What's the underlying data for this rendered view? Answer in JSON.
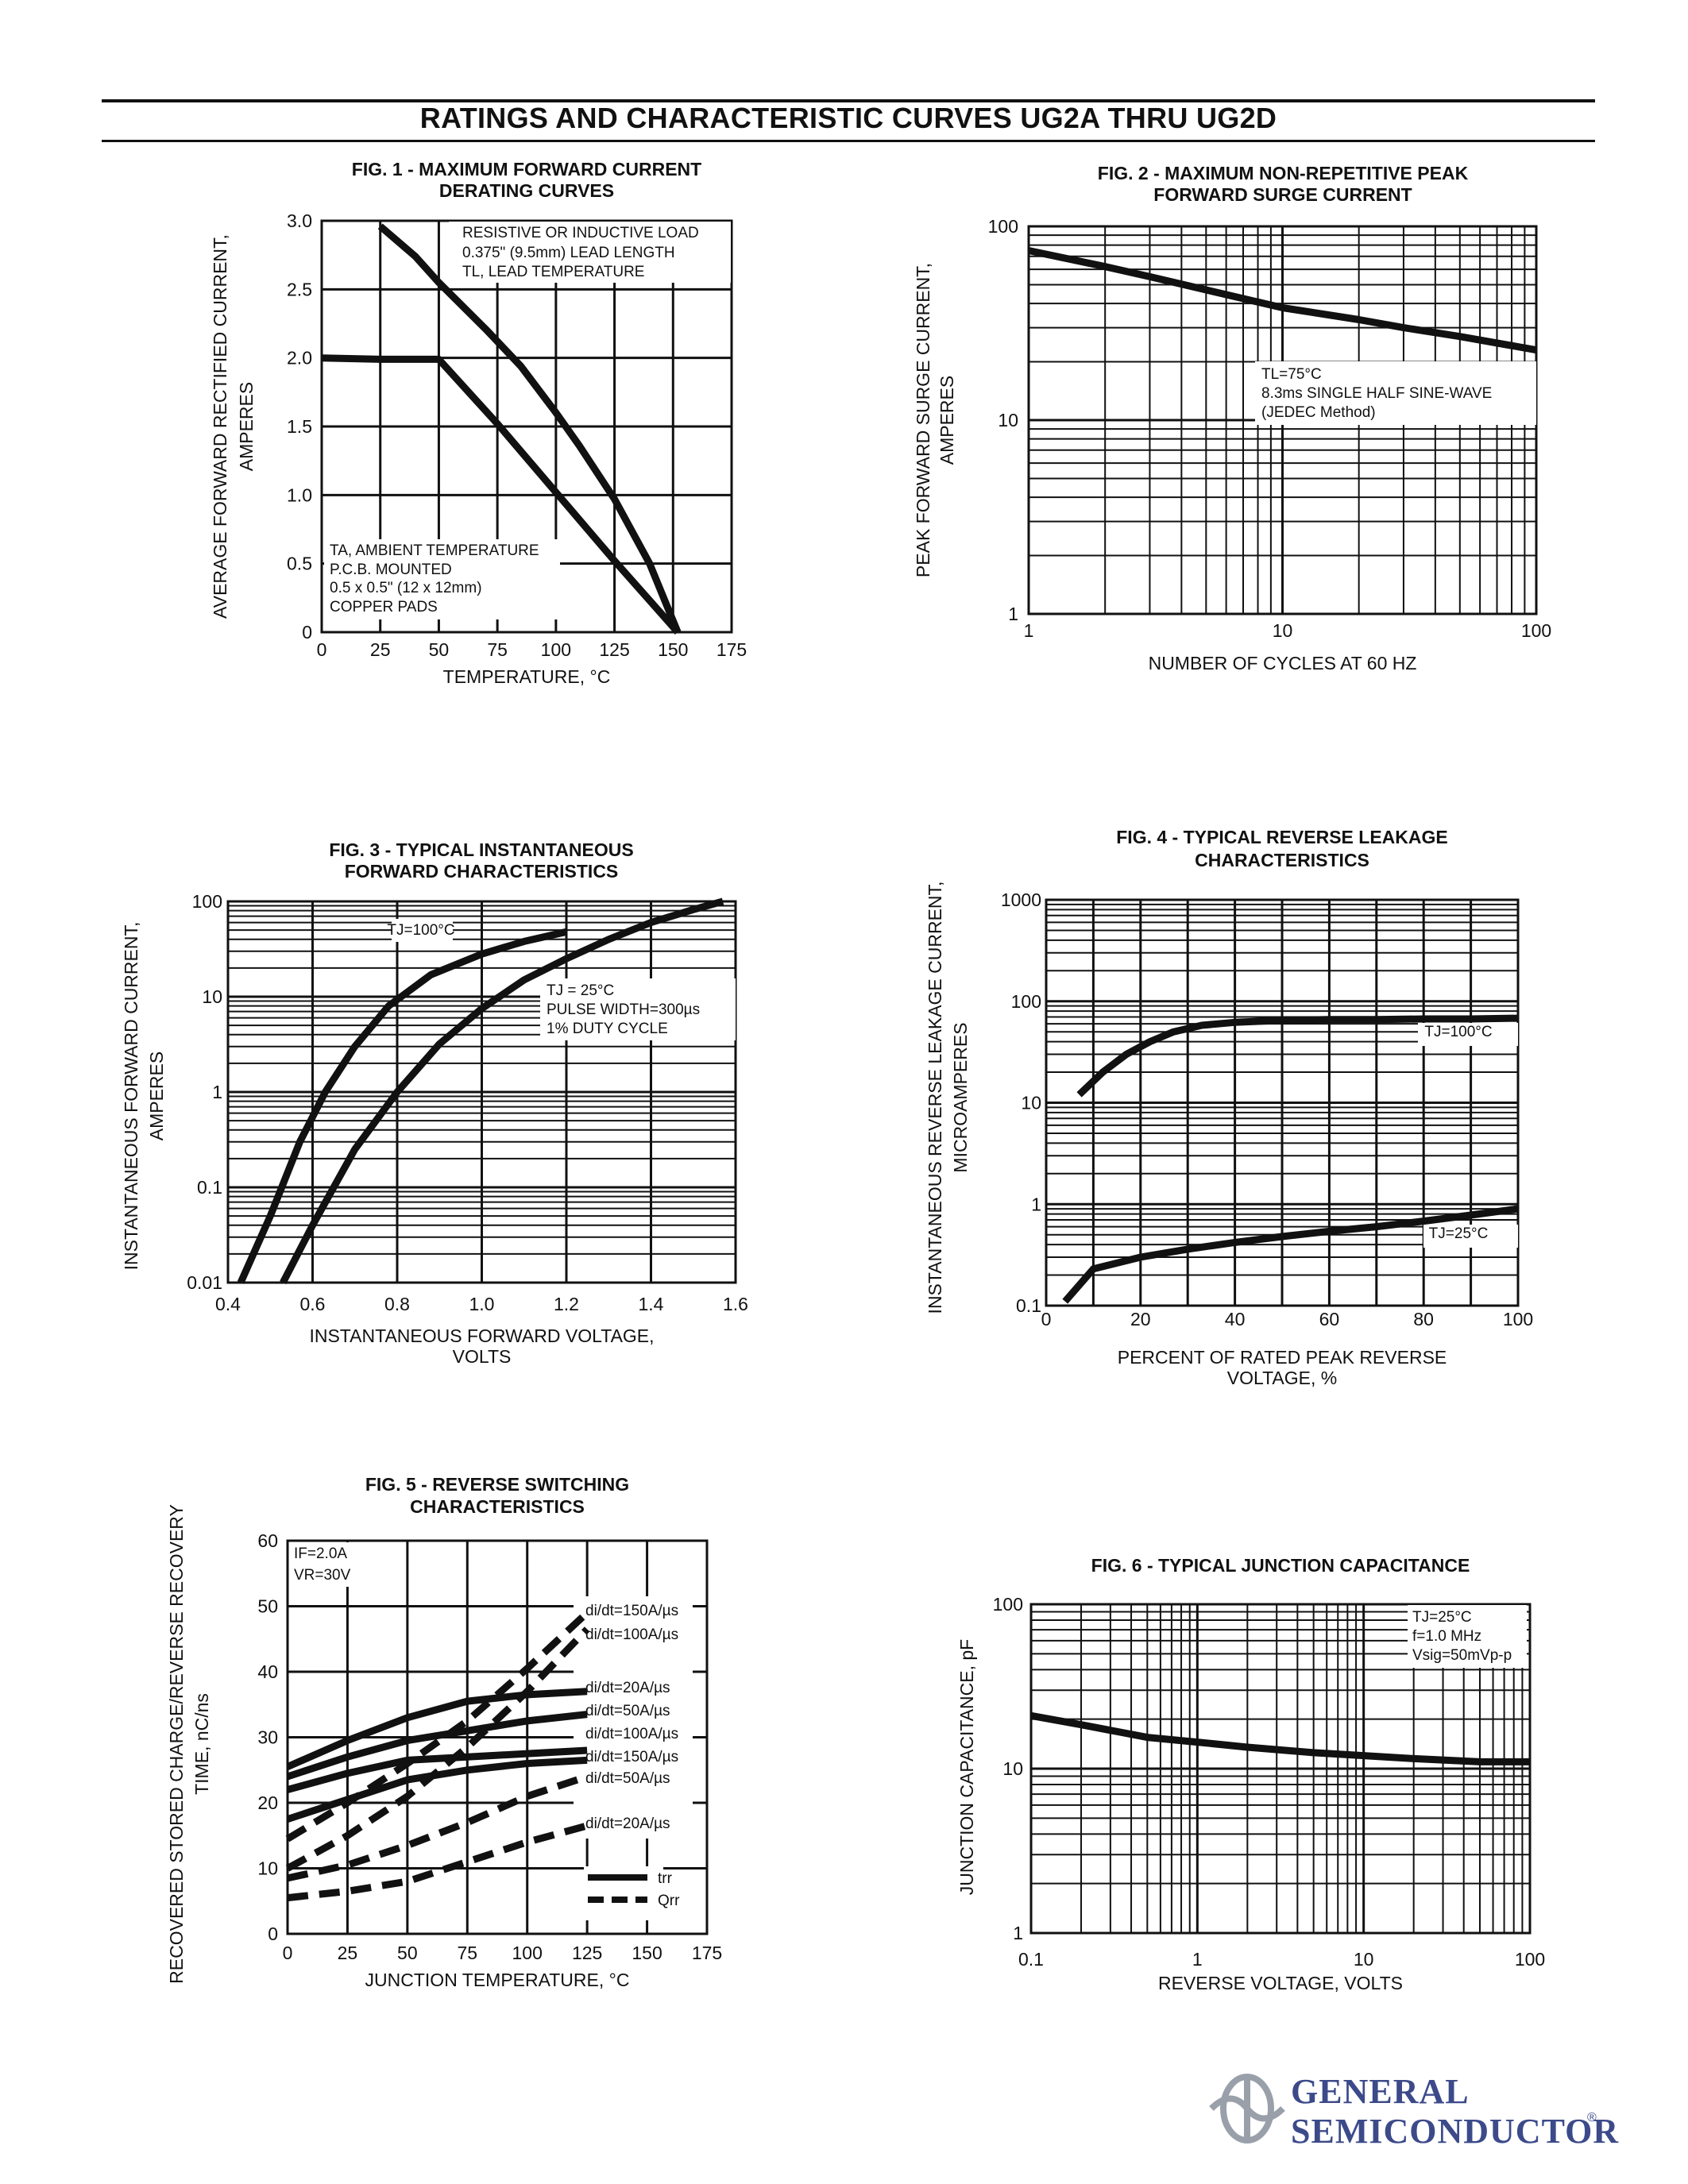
{
  "page": {
    "title": "RATINGS AND CHARACTERISTIC CURVES UG2A THRU UG2D"
  },
  "logo": {
    "line1": "GENERAL",
    "line2": "SEMICONDUCTOR",
    "reg": "®"
  },
  "chart_data": [
    {
      "id": "fig1",
      "type": "line",
      "title_lines": [
        "FIG. 1 - MAXIMUM FORWARD CURRENT",
        "DERATING CURVES"
      ],
      "xlabel_lines": [
        "TEMPERATURE, °C"
      ],
      "ylabel_lines": [
        "AVERAGE FORWARD RECTIFIED CURRENT,",
        "AMPERES"
      ],
      "x_scale": "linear",
      "y_scale": "linear",
      "xlim": [
        0,
        175
      ],
      "ylim": [
        0,
        3.0
      ],
      "xticks": [
        0,
        25,
        50,
        75,
        100,
        125,
        150,
        175
      ],
      "xtick_labels": [
        "0",
        "25",
        "50",
        "75",
        "100",
        "125",
        "150",
        "175"
      ],
      "yticks": [
        0,
        0.5,
        1.0,
        1.5,
        2.0,
        2.5,
        3.0
      ],
      "ytick_labels": [
        "0",
        "0.5",
        "1.0",
        "1.5",
        "2.0",
        "2.5",
        "3.0"
      ],
      "grid_x": [
        25,
        50,
        75,
        100,
        125,
        150
      ],
      "grid_y": [
        0.5,
        1.0,
        1.5,
        2.0,
        2.5
      ],
      "series": [
        {
          "style": "solid",
          "x": [
            25,
            40,
            50,
            60,
            70,
            85,
            100,
            110,
            125,
            140,
            152
          ],
          "y": [
            2.96,
            2.74,
            2.55,
            2.38,
            2.21,
            1.94,
            1.6,
            1.36,
            0.97,
            0.5,
            0.0
          ]
        },
        {
          "style": "solid",
          "x": [
            0,
            25,
            50,
            75,
            100,
            125,
            152
          ],
          "y": [
            2.0,
            1.99,
            1.99,
            1.52,
            1.02,
            0.52,
            0.0
          ]
        }
      ],
      "annotations": [
        {
          "lines": [
            "RESISTIVE OR INDUCTIVE LOAD",
            "0.375\" (9.5mm) LEAD LENGTH",
            "TL, LEAD TEMPERATURE"
          ]
        },
        {
          "lines": [
            "TA, AMBIENT TEMPERATURE",
            "P.C.B. MOUNTED",
            "0.5 x 0.5\" (12 x 12mm)",
            "COPPER PADS"
          ]
        }
      ]
    },
    {
      "id": "fig2",
      "type": "line",
      "title_lines": [
        "FIG. 2 - MAXIMUM NON-REPETITIVE PEAK",
        "FORWARD SURGE CURRENT"
      ],
      "xlabel_lines": [
        "NUMBER OF CYCLES AT 60 HZ"
      ],
      "ylabel_lines": [
        "PEAK FORWARD SURGE CURRENT,",
        "AMPERES"
      ],
      "x_scale": "log",
      "y_scale": "log",
      "xlim": [
        1,
        100
      ],
      "ylim": [
        1,
        100
      ],
      "xticks": [
        1,
        10,
        100
      ],
      "xtick_labels": [
        "1",
        "10",
        "100"
      ],
      "yticks": [
        1,
        10,
        100
      ],
      "ytick_labels": [
        "1",
        "10",
        "100"
      ],
      "series": [
        {
          "style": "solid",
          "x": [
            1,
            2,
            3,
            5,
            10,
            20,
            30,
            50,
            100
          ],
          "y": [
            75,
            62,
            55,
            47,
            38,
            33,
            30,
            27,
            23
          ]
        }
      ],
      "annotations": [
        {
          "lines": [
            "TL=75°C",
            "8.3ms SINGLE HALF SINE-WAVE",
            "(JEDEC Method)"
          ]
        }
      ]
    },
    {
      "id": "fig3",
      "type": "line",
      "title_lines": [
        "FIG. 3 - TYPICAL INSTANTANEOUS",
        "FORWARD CHARACTERISTICS"
      ],
      "xlabel_lines": [
        "INSTANTANEOUS FORWARD VOLTAGE,",
        "VOLTS"
      ],
      "ylabel_lines": [
        "INSTANTANEOUS FORWARD CURRENT,",
        "AMPERES"
      ],
      "x_scale": "linear",
      "y_scale": "log",
      "xlim": [
        0.4,
        1.6
      ],
      "ylim": [
        0.01,
        100
      ],
      "xticks": [
        0.4,
        0.6,
        0.8,
        1.0,
        1.2,
        1.4,
        1.6
      ],
      "xtick_labels": [
        "0.4",
        "0.6",
        "0.8",
        "1.0",
        "1.2",
        "1.4",
        "1.6"
      ],
      "yticks": [
        0.01,
        0.1,
        1,
        10,
        100
      ],
      "ytick_labels": [
        "0.01",
        "0.1",
        "1",
        "10",
        "100"
      ],
      "grid_x": [
        0.6,
        0.8,
        1.0,
        1.2,
        1.4
      ],
      "series": [
        {
          "name": "TJ=100°C",
          "style": "solid",
          "x": [
            0.43,
            0.5,
            0.57,
            0.63,
            0.7,
            0.78,
            0.88,
            1.0,
            1.1,
            1.2
          ],
          "y": [
            0.01,
            0.05,
            0.3,
            1.0,
            3.0,
            8.0,
            17.0,
            28.0,
            38.0,
            48.0
          ]
        },
        {
          "name": "TJ = 25°C",
          "style": "solid",
          "x": [
            0.53,
            0.6,
            0.7,
            0.8,
            0.9,
            1.0,
            1.1,
            1.2,
            1.3,
            1.4,
            1.5,
            1.57
          ],
          "y": [
            0.01,
            0.04,
            0.25,
            1.0,
            3.2,
            7.5,
            15.0,
            25.0,
            40.0,
            60.0,
            82.0,
            100.0
          ]
        }
      ],
      "annotations": [
        {
          "lines": [
            "TJ=100°C"
          ]
        },
        {
          "lines": [
            "TJ = 25°C",
            "PULSE WIDTH=300µs",
            "1% DUTY CYCLE"
          ]
        }
      ]
    },
    {
      "id": "fig4",
      "type": "line",
      "title_lines": [
        "FIG. 4 - TYPICAL REVERSE LEAKAGE",
        "CHARACTERISTICS"
      ],
      "xlabel_lines": [
        "PERCENT OF RATED PEAK REVERSE",
        "VOLTAGE, %"
      ],
      "ylabel_lines": [
        "INSTANTANEOUS REVERSE LEAKAGE CURRENT,",
        "MICROAMPERES"
      ],
      "x_scale": "linear",
      "y_scale": "log",
      "xlim": [
        0,
        100
      ],
      "ylim": [
        0.1,
        1000
      ],
      "xticks": [
        0,
        20,
        40,
        60,
        80,
        100
      ],
      "xtick_labels": [
        "0",
        "20",
        "40",
        "60",
        "80",
        "100"
      ],
      "yticks": [
        0.1,
        1,
        10,
        100,
        1000
      ],
      "ytick_labels": [
        "0.1",
        "1",
        "10",
        "100",
        "1000"
      ],
      "grid_x": [
        10,
        20,
        30,
        40,
        50,
        60,
        70,
        80,
        90
      ],
      "series": [
        {
          "name": "TJ=100°C",
          "style": "solid",
          "x": [
            7,
            12,
            17,
            22,
            27,
            33,
            40,
            50,
            60,
            70,
            80,
            90,
            100
          ],
          "y": [
            12.0,
            20.0,
            30.0,
            40.0,
            50.0,
            58.0,
            62.0,
            65.0,
            66.0,
            66.0,
            67.0,
            67.0,
            68.0
          ]
        },
        {
          "name": "TJ=25°C",
          "style": "solid",
          "x": [
            4,
            10,
            20,
            30,
            40,
            50,
            60,
            70,
            80,
            90,
            100
          ],
          "y": [
            0.11,
            0.23,
            0.3,
            0.36,
            0.42,
            0.48,
            0.54,
            0.6,
            0.68,
            0.78,
            0.9
          ]
        }
      ],
      "annotations": [
        {
          "lines": [
            "TJ=100°C"
          ]
        },
        {
          "lines": [
            "TJ=25°C"
          ]
        }
      ]
    },
    {
      "id": "fig5",
      "type": "line",
      "title_lines": [
        "FIG. 5 - REVERSE SWITCHING",
        "CHARACTERISTICS"
      ],
      "xlabel_lines": [
        "JUNCTION TEMPERATURE, °C"
      ],
      "ylabel_lines": [
        "RECOVERED STORED CHARGE/REVERSE RECOVERY",
        "TIME, nC/ns"
      ],
      "x_scale": "linear",
      "y_scale": "linear",
      "xlim": [
        0,
        175
      ],
      "ylim": [
        0,
        60
      ],
      "xticks": [
        0,
        25,
        50,
        75,
        100,
        125,
        150,
        175
      ],
      "xtick_labels": [
        "0",
        "25",
        "50",
        "75",
        "100",
        "125",
        "150",
        "175"
      ],
      "yticks": [
        0,
        10,
        20,
        30,
        40,
        50,
        60
      ],
      "ytick_labels": [
        "0",
        "10",
        "20",
        "30",
        "40",
        "50",
        "60"
      ],
      "grid_x": [
        25,
        50,
        75,
        100,
        125,
        150
      ],
      "grid_y": [
        10,
        20,
        30,
        40,
        50
      ],
      "series": [
        {
          "name": "trr di/dt=20A/µs",
          "style": "solid",
          "x": [
            0,
            25,
            50,
            75,
            100,
            125
          ],
          "y": [
            25.5,
            29.5,
            33.0,
            35.5,
            36.5,
            37.0
          ]
        },
        {
          "name": "trr di/dt=50A/µs",
          "style": "solid",
          "x": [
            0,
            25,
            50,
            75,
            100,
            125
          ],
          "y": [
            24.0,
            27.0,
            29.5,
            31.0,
            32.5,
            33.5
          ]
        },
        {
          "name": "trr di/dt=100A/µs",
          "style": "solid",
          "x": [
            0,
            25,
            50,
            75,
            100,
            125
          ],
          "y": [
            22.0,
            24.5,
            26.5,
            27.0,
            27.5,
            28.0
          ]
        },
        {
          "name": "trr di/dt=150A/µs",
          "style": "solid",
          "x": [
            0,
            25,
            50,
            75,
            100,
            125
          ],
          "y": [
            17.5,
            20.5,
            23.5,
            25.0,
            26.0,
            26.5
          ]
        },
        {
          "name": "Qrr di/dt=150A/µs",
          "style": "dashed",
          "x": [
            0,
            25,
            50,
            75,
            100,
            125
          ],
          "y": [
            14.5,
            20.0,
            26.0,
            32.5,
            40.5,
            49.0
          ]
        },
        {
          "name": "Qrr di/dt=100A/µs",
          "style": "dashed",
          "x": [
            0,
            25,
            50,
            75,
            100,
            125
          ],
          "y": [
            10.0,
            15.0,
            21.0,
            28.5,
            37.0,
            46.5
          ]
        },
        {
          "name": "Qrr di/dt=50A/µs",
          "style": "dashed",
          "x": [
            0,
            25,
            50,
            75,
            100,
            125
          ],
          "y": [
            8.5,
            10.5,
            13.5,
            17.0,
            21.0,
            24.0
          ]
        },
        {
          "name": "Qrr di/dt=20A/µs",
          "style": "dashed",
          "x": [
            0,
            25,
            50,
            75,
            100,
            125
          ],
          "y": [
            5.5,
            6.5,
            8.0,
            11.0,
            14.0,
            16.5
          ]
        }
      ],
      "curve_labels": [
        "di/dt=150A/µs",
        "di/dt=100A/µs",
        "di/dt=20A/µs",
        "di/dt=50A/µs",
        "di/dt=100A/µs",
        "di/dt=150A/µs",
        "di/dt=50A/µs",
        "di/dt=20A/µs"
      ],
      "annotations": [
        {
          "lines": [
            "IF=2.0A",
            "VR=30V"
          ]
        }
      ],
      "legend": [
        {
          "label": "trr",
          "style": "solid"
        },
        {
          "label": "Qrr",
          "style": "dashed"
        }
      ]
    },
    {
      "id": "fig6",
      "type": "line",
      "title_lines": [
        "FIG. 6 - TYPICAL JUNCTION CAPACITANCE"
      ],
      "xlabel_lines": [
        "REVERSE VOLTAGE, VOLTS"
      ],
      "ylabel_lines": [
        "JUNCTION CAPACITANCE, pF"
      ],
      "x_scale": "log",
      "y_scale": "log",
      "xlim": [
        0.1,
        100
      ],
      "ylim": [
        1,
        100
      ],
      "xticks": [
        0.1,
        1,
        10,
        100
      ],
      "xtick_labels": [
        "0.1",
        "1",
        "10",
        "100"
      ],
      "yticks": [
        1,
        10,
        100
      ],
      "ytick_labels": [
        "1",
        "10",
        "100"
      ],
      "series": [
        {
          "style": "solid",
          "x": [
            0.1,
            0.2,
            0.5,
            1,
            2,
            5,
            10,
            20,
            50,
            100
          ],
          "y": [
            21.0,
            18.5,
            15.5,
            14.5,
            13.5,
            12.5,
            12.0,
            11.5,
            11.0,
            11.0
          ]
        }
      ],
      "annotations": [
        {
          "lines": [
            "TJ=25°C",
            "f=1.0 MHz",
            "Vsig=50mVp-p"
          ]
        }
      ]
    }
  ]
}
